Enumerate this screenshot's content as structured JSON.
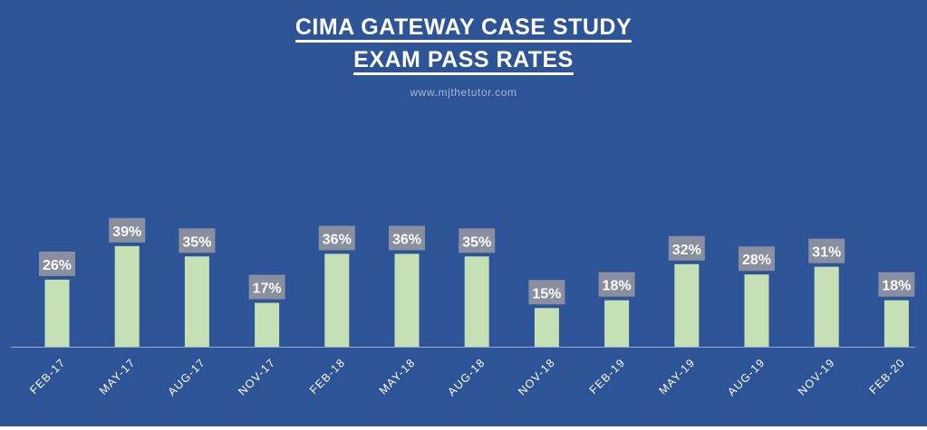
{
  "chart_data": {
    "type": "bar",
    "title_line1": "CIMA GATEWAY CASE STUDY",
    "title_line2": "EXAM PASS RATES",
    "watermark": "www.mjthetutor.com",
    "categories": [
      "FEB-17",
      "MAY-17",
      "AUG-17",
      "NOV-17",
      "FEB-18",
      "MAY-18",
      "AUG-18",
      "NOV-18",
      "FEB-19",
      "MAY-19",
      "AUG-19",
      "NOV-19",
      "FEB-20"
    ],
    "values": [
      26,
      39,
      35,
      17,
      36,
      36,
      35,
      15,
      18,
      32,
      28,
      31,
      18
    ],
    "data_labels": [
      "26%",
      "39%",
      "35%",
      "17%",
      "36%",
      "36%",
      "35%",
      "15%",
      "18%",
      "32%",
      "28%",
      "31%",
      "18%"
    ],
    "unit": "%",
    "xlabel": "",
    "ylabel": "",
    "ylim": [
      0,
      100
    ],
    "grid": false,
    "legend": "none"
  },
  "colors": {
    "background": "#2d5496",
    "bar": "#c5e0b4",
    "label_background": "#8a8fa0",
    "text": "#ffffff"
  }
}
